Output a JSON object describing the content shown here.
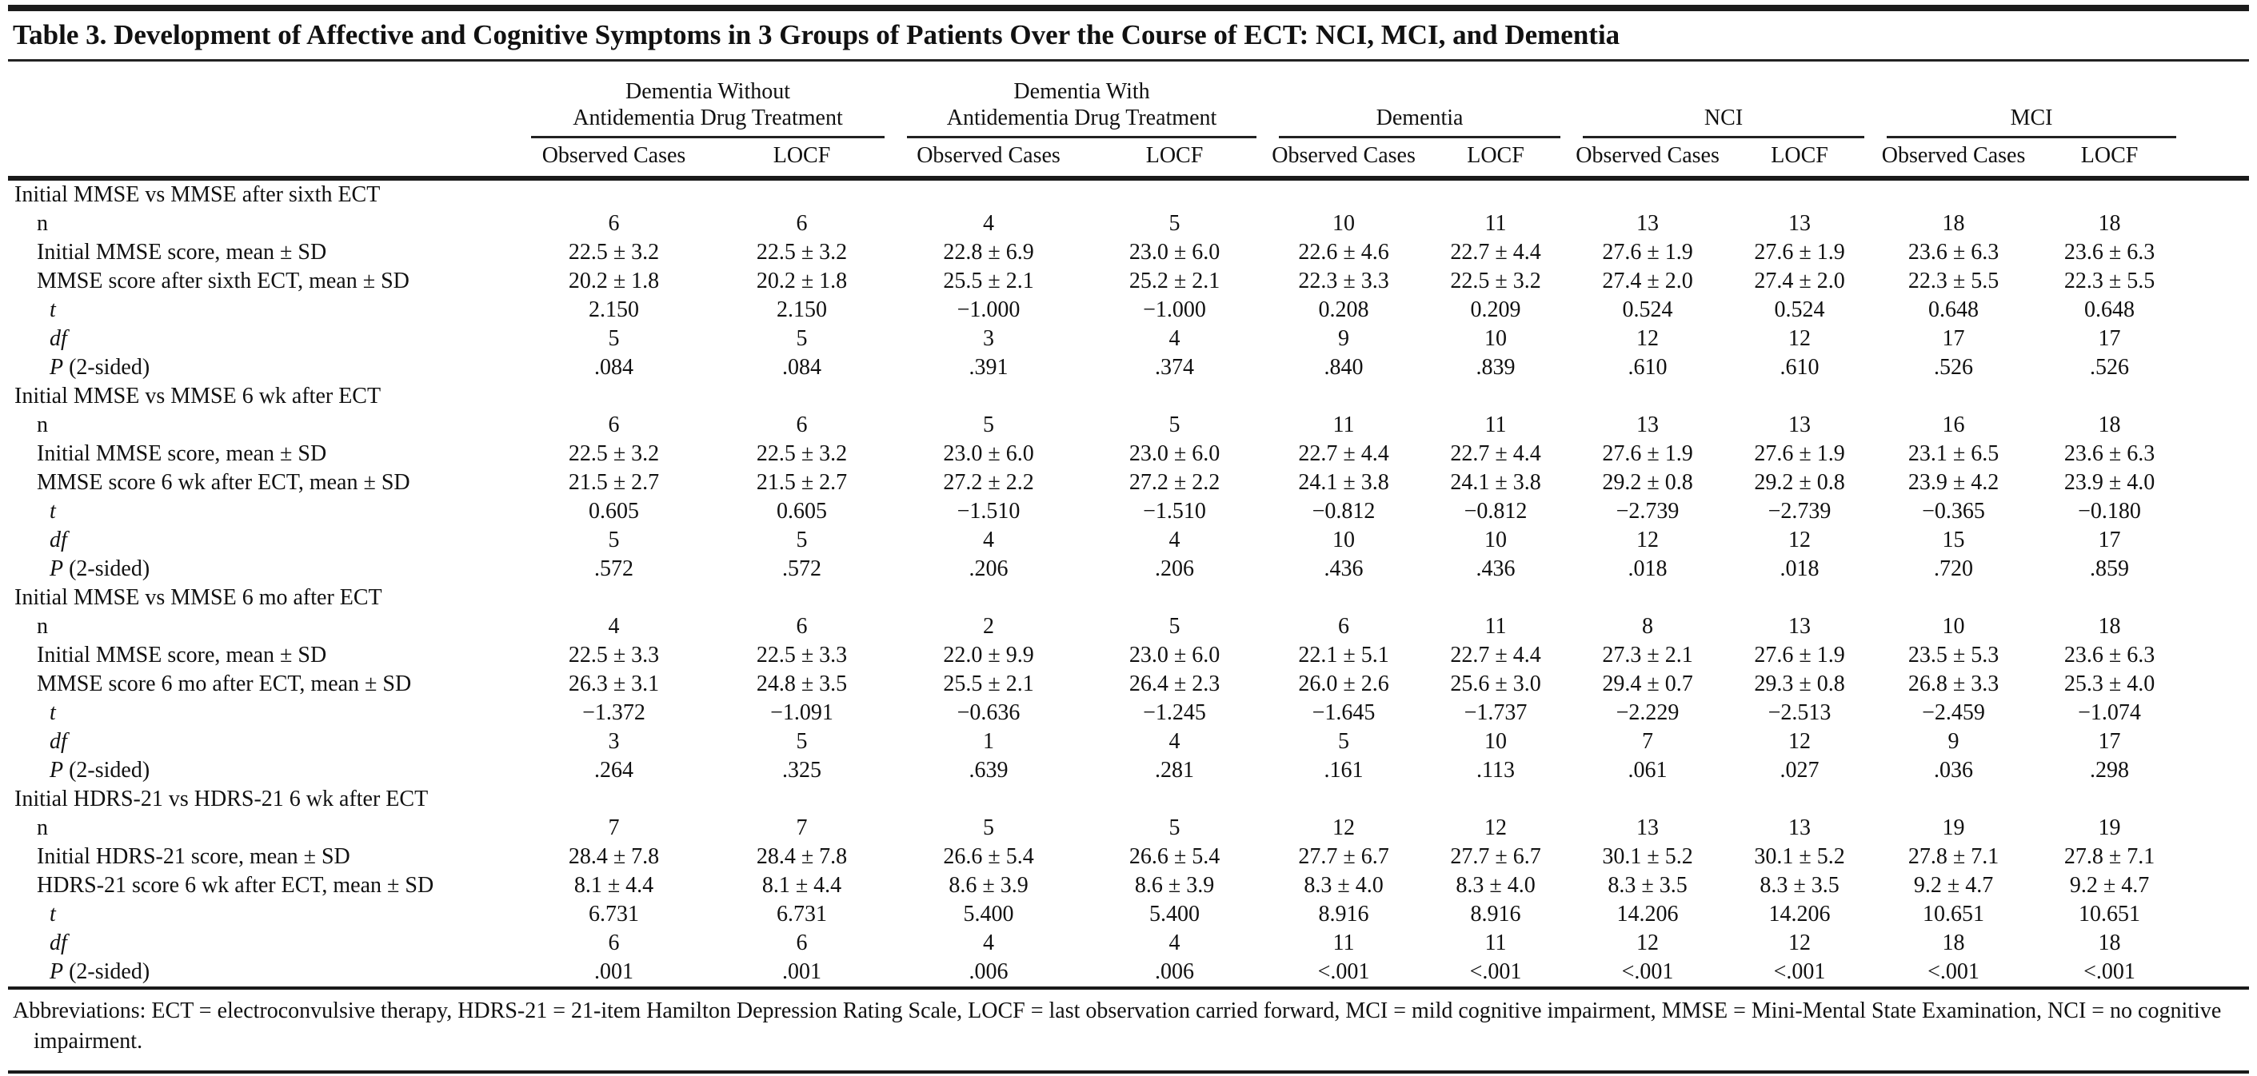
{
  "table": {
    "title": "Table 3. Development of Affective and Cognitive Symptoms in 3 Groups of Patients Over the Course of ECT: NCI, MCI, and Dementia",
    "column_groups": [
      {
        "line1": "Dementia Without",
        "line2": "Antidementia Drug Treatment",
        "sub": [
          "Observed Cases",
          "LOCF"
        ]
      },
      {
        "line1": "Dementia With",
        "line2": "Antidementia Drug Treatment",
        "sub": [
          "Observed Cases",
          "LOCF"
        ]
      },
      {
        "line1": "",
        "line2": "Dementia",
        "sub": [
          "Observed Cases",
          "LOCF"
        ]
      },
      {
        "line1": "",
        "line2": "NCI",
        "sub": [
          "Observed Cases",
          "LOCF"
        ]
      },
      {
        "line1": "",
        "line2": "MCI",
        "sub": [
          "Observed Cases",
          "LOCF"
        ]
      }
    ],
    "sections": [
      {
        "label": "Initial MMSE vs MMSE after sixth ECT",
        "rows": [
          {
            "em": "",
            "text": "n",
            "indent": 1,
            "values": [
              "6",
              "6",
              "4",
              "5",
              "10",
              "11",
              "13",
              "13",
              "18",
              "18"
            ]
          },
          {
            "em": "",
            "text": "Initial MMSE score, mean ± SD",
            "indent": 1,
            "values": [
              "22.5 ± 3.2",
              "22.5 ± 3.2",
              "22.8 ± 6.9",
              "23.0 ± 6.0",
              "22.6 ± 4.6",
              "22.7 ± 4.4",
              "27.6 ± 1.9",
              "27.6 ± 1.9",
              "23.6 ± 6.3",
              "23.6 ± 6.3"
            ]
          },
          {
            "em": "",
            "text": "MMSE score after sixth ECT, mean ± SD",
            "indent": 1,
            "values": [
              "20.2 ± 1.8",
              "20.2 ± 1.8",
              "25.5 ± 2.1",
              "25.2 ± 2.1",
              "22.3 ± 3.3",
              "22.5 ± 3.2",
              "27.4 ± 2.0",
              "27.4 ± 2.0",
              "22.3 ± 5.5",
              "22.3 ± 5.5"
            ]
          },
          {
            "em": "t",
            "text": "",
            "indent": 2,
            "values": [
              "2.150",
              "2.150",
              "−1.000",
              "−1.000",
              "0.208",
              "0.209",
              "0.524",
              "0.524",
              "0.648",
              "0.648"
            ]
          },
          {
            "em": "df",
            "text": "",
            "indent": 2,
            "values": [
              "5",
              "5",
              "3",
              "4",
              "9",
              "10",
              "12",
              "12",
              "17",
              "17"
            ]
          },
          {
            "em": "P",
            "text": " (2-sided)",
            "indent": 2,
            "values": [
              ".084",
              ".084",
              ".391",
              ".374",
              ".840",
              ".839",
              ".610",
              ".610",
              ".526",
              ".526"
            ]
          }
        ]
      },
      {
        "label": "Initial MMSE vs MMSE 6 wk after ECT",
        "rows": [
          {
            "em": "",
            "text": "n",
            "indent": 1,
            "values": [
              "6",
              "6",
              "5",
              "5",
              "11",
              "11",
              "13",
              "13",
              "16",
              "18"
            ]
          },
          {
            "em": "",
            "text": "Initial MMSE score, mean ± SD",
            "indent": 1,
            "values": [
              "22.5 ± 3.2",
              "22.5 ± 3.2",
              "23.0 ± 6.0",
              "23.0 ± 6.0",
              "22.7 ± 4.4",
              "22.7 ± 4.4",
              "27.6 ± 1.9",
              "27.6 ± 1.9",
              "23.1 ± 6.5",
              "23.6 ± 6.3"
            ]
          },
          {
            "em": "",
            "text": "MMSE score 6 wk after ECT, mean ± SD",
            "indent": 1,
            "values": [
              "21.5 ± 2.7",
              "21.5 ± 2.7",
              "27.2 ± 2.2",
              "27.2 ± 2.2",
              "24.1 ± 3.8",
              "24.1 ± 3.8",
              "29.2 ± 0.8",
              "29.2 ± 0.8",
              "23.9 ± 4.2",
              "23.9 ± 4.0"
            ]
          },
          {
            "em": "t",
            "text": "",
            "indent": 2,
            "values": [
              "0.605",
              "0.605",
              "−1.510",
              "−1.510",
              "−0.812",
              "−0.812",
              "−2.739",
              "−2.739",
              "−0.365",
              "−0.180"
            ]
          },
          {
            "em": "df",
            "text": "",
            "indent": 2,
            "values": [
              "5",
              "5",
              "4",
              "4",
              "10",
              "10",
              "12",
              "12",
              "15",
              "17"
            ]
          },
          {
            "em": "P",
            "text": " (2-sided)",
            "indent": 2,
            "values": [
              ".572",
              ".572",
              ".206",
              ".206",
              ".436",
              ".436",
              ".018",
              ".018",
              ".720",
              ".859"
            ]
          }
        ]
      },
      {
        "label": "Initial MMSE vs MMSE 6 mo after ECT",
        "rows": [
          {
            "em": "",
            "text": "n",
            "indent": 1,
            "values": [
              "4",
              "6",
              "2",
              "5",
              "6",
              "11",
              "8",
              "13",
              "10",
              "18"
            ]
          },
          {
            "em": "",
            "text": "Initial MMSE score, mean ± SD",
            "indent": 1,
            "values": [
              "22.5 ± 3.3",
              "22.5 ± 3.3",
              "22.0 ± 9.9",
              "23.0 ± 6.0",
              "22.1 ± 5.1",
              "22.7 ± 4.4",
              "27.3 ± 2.1",
              "27.6 ± 1.9",
              "23.5 ± 5.3",
              "23.6 ± 6.3"
            ]
          },
          {
            "em": "",
            "text": "MMSE score 6 mo after ECT, mean ± SD",
            "indent": 1,
            "values": [
              "26.3 ± 3.1",
              "24.8 ± 3.5",
              "25.5 ± 2.1",
              "26.4 ± 2.3",
              "26.0 ± 2.6",
              "25.6 ± 3.0",
              "29.4 ± 0.7",
              "29.3 ± 0.8",
              "26.8 ± 3.3",
              "25.3 ± 4.0"
            ]
          },
          {
            "em": "t",
            "text": "",
            "indent": 2,
            "values": [
              "−1.372",
              "−1.091",
              "−0.636",
              "−1.245",
              "−1.645",
              "−1.737",
              "−2.229",
              "−2.513",
              "−2.459",
              "−1.074"
            ]
          },
          {
            "em": "df",
            "text": "",
            "indent": 2,
            "values": [
              "3",
              "5",
              "1",
              "4",
              "5",
              "10",
              "7",
              "12",
              "9",
              "17"
            ]
          },
          {
            "em": "P",
            "text": " (2-sided)",
            "indent": 2,
            "values": [
              ".264",
              ".325",
              ".639",
              ".281",
              ".161",
              ".113",
              ".061",
              ".027",
              ".036",
              ".298"
            ]
          }
        ]
      },
      {
        "label": "Initial HDRS-21 vs HDRS-21 6 wk after ECT",
        "rows": [
          {
            "em": "",
            "text": "n",
            "indent": 1,
            "values": [
              "7",
              "7",
              "5",
              "5",
              "12",
              "12",
              "13",
              "13",
              "19",
              "19"
            ]
          },
          {
            "em": "",
            "text": "Initial HDRS-21 score, mean ± SD",
            "indent": 1,
            "values": [
              "28.4 ± 7.8",
              "28.4 ± 7.8",
              "26.6 ± 5.4",
              "26.6 ± 5.4",
              "27.7 ± 6.7",
              "27.7 ± 6.7",
              "30.1 ± 5.2",
              "30.1 ± 5.2",
              "27.8 ± 7.1",
              "27.8 ± 7.1"
            ]
          },
          {
            "em": "",
            "text": "HDRS-21 score 6 wk after ECT, mean ± SD",
            "indent": 1,
            "values": [
              "8.1 ± 4.4",
              "8.1 ± 4.4",
              "8.6 ± 3.9",
              "8.6 ± 3.9",
              "8.3 ± 4.0",
              "8.3 ± 4.0",
              "8.3 ± 3.5",
              "8.3 ± 3.5",
              "9.2 ± 4.7",
              "9.2 ± 4.7"
            ]
          },
          {
            "em": "t",
            "text": "",
            "indent": 2,
            "values": [
              "6.731",
              "6.731",
              "5.400",
              "5.400",
              "8.916",
              "8.916",
              "14.206",
              "14.206",
              "10.651",
              "10.651"
            ]
          },
          {
            "em": "df",
            "text": "",
            "indent": 2,
            "values": [
              "6",
              "6",
              "4",
              "4",
              "11",
              "11",
              "12",
              "12",
              "18",
              "18"
            ]
          },
          {
            "em": "P",
            "text": " (2-sided)",
            "indent": 2,
            "values": [
              ".001",
              ".001",
              ".006",
              ".006",
              "<.001",
              "<.001",
              "<.001",
              "<.001",
              "<.001",
              "<.001"
            ]
          }
        ]
      }
    ],
    "footnote": "Abbreviations: ECT = electroconvulsive therapy, HDRS-21 = 21-item Hamilton Depression Rating Scale, LOCF = last observation carried forward, MCI = mild cognitive impairment, MMSE = Mini-Mental State Examination, NCI = no cognitive impairment."
  }
}
